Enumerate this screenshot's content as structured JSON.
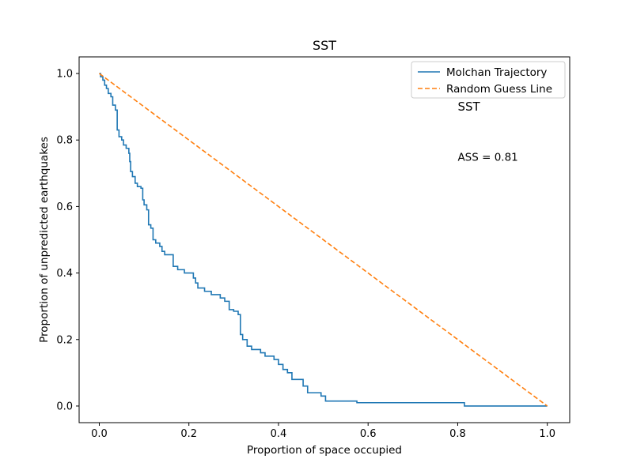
{
  "chart_data": {
    "type": "line",
    "title": "SST",
    "xlabel": "Proportion of space occupied",
    "ylabel": "Proportion of unpredicted earthquakes",
    "xlim": [
      -0.045,
      1.05
    ],
    "ylim": [
      -0.05,
      1.05
    ],
    "xticks": [
      0.0,
      0.2,
      0.4,
      0.6,
      0.8,
      1.0
    ],
    "yticks": [
      0.0,
      0.2,
      0.4,
      0.6,
      0.8,
      1.0
    ],
    "xtick_labels": [
      "0.0",
      "0.2",
      "0.4",
      "0.6",
      "0.8",
      "1.0"
    ],
    "ytick_labels": [
      "0.0",
      "0.2",
      "0.4",
      "0.6",
      "0.8",
      "1.0"
    ],
    "grid": false,
    "legend_position": "top-right",
    "series": [
      {
        "name": "Molchan Trajectory",
        "color": "#1f77b4",
        "style": "step",
        "points": [
          [
            0.0,
            1.0
          ],
          [
            0.003,
            0.99
          ],
          [
            0.008,
            0.98
          ],
          [
            0.012,
            0.965
          ],
          [
            0.016,
            0.955
          ],
          [
            0.02,
            0.94
          ],
          [
            0.026,
            0.93
          ],
          [
            0.03,
            0.905
          ],
          [
            0.036,
            0.89
          ],
          [
            0.04,
            0.83
          ],
          [
            0.044,
            0.81
          ],
          [
            0.05,
            0.8
          ],
          [
            0.054,
            0.785
          ],
          [
            0.06,
            0.775
          ],
          [
            0.066,
            0.76
          ],
          [
            0.068,
            0.735
          ],
          [
            0.07,
            0.705
          ],
          [
            0.074,
            0.69
          ],
          [
            0.08,
            0.67
          ],
          [
            0.085,
            0.66
          ],
          [
            0.093,
            0.655
          ],
          [
            0.097,
            0.62
          ],
          [
            0.1,
            0.605
          ],
          [
            0.106,
            0.59
          ],
          [
            0.11,
            0.545
          ],
          [
            0.115,
            0.535
          ],
          [
            0.12,
            0.5
          ],
          [
            0.126,
            0.49
          ],
          [
            0.135,
            0.48
          ],
          [
            0.14,
            0.465
          ],
          [
            0.146,
            0.455
          ],
          [
            0.165,
            0.42
          ],
          [
            0.175,
            0.41
          ],
          [
            0.19,
            0.4
          ],
          [
            0.21,
            0.385
          ],
          [
            0.215,
            0.37
          ],
          [
            0.22,
            0.355
          ],
          [
            0.235,
            0.345
          ],
          [
            0.25,
            0.335
          ],
          [
            0.27,
            0.325
          ],
          [
            0.28,
            0.315
          ],
          [
            0.29,
            0.29
          ],
          [
            0.3,
            0.285
          ],
          [
            0.31,
            0.275
          ],
          [
            0.315,
            0.215
          ],
          [
            0.32,
            0.2
          ],
          [
            0.33,
            0.18
          ],
          [
            0.34,
            0.17
          ],
          [
            0.36,
            0.16
          ],
          [
            0.37,
            0.15
          ],
          [
            0.39,
            0.14
          ],
          [
            0.4,
            0.125
          ],
          [
            0.41,
            0.11
          ],
          [
            0.42,
            0.1
          ],
          [
            0.43,
            0.08
          ],
          [
            0.455,
            0.06
          ],
          [
            0.465,
            0.04
          ],
          [
            0.495,
            0.03
          ],
          [
            0.505,
            0.015
          ],
          [
            0.575,
            0.01
          ],
          [
            0.815,
            0.0
          ],
          [
            1.0,
            0.0
          ]
        ]
      },
      {
        "name": "Random Guess Line",
        "color": "#ff7f0e",
        "style": "dashed",
        "points": [
          [
            0.0,
            1.0
          ],
          [
            1.0,
            0.0
          ]
        ]
      }
    ],
    "annotations": [
      {
        "text": "SST",
        "x": 0.8,
        "y": 0.9,
        "size": "large"
      },
      {
        "text": "ASS = 0.81",
        "x": 0.8,
        "y": 0.75,
        "size": "normal"
      }
    ]
  }
}
